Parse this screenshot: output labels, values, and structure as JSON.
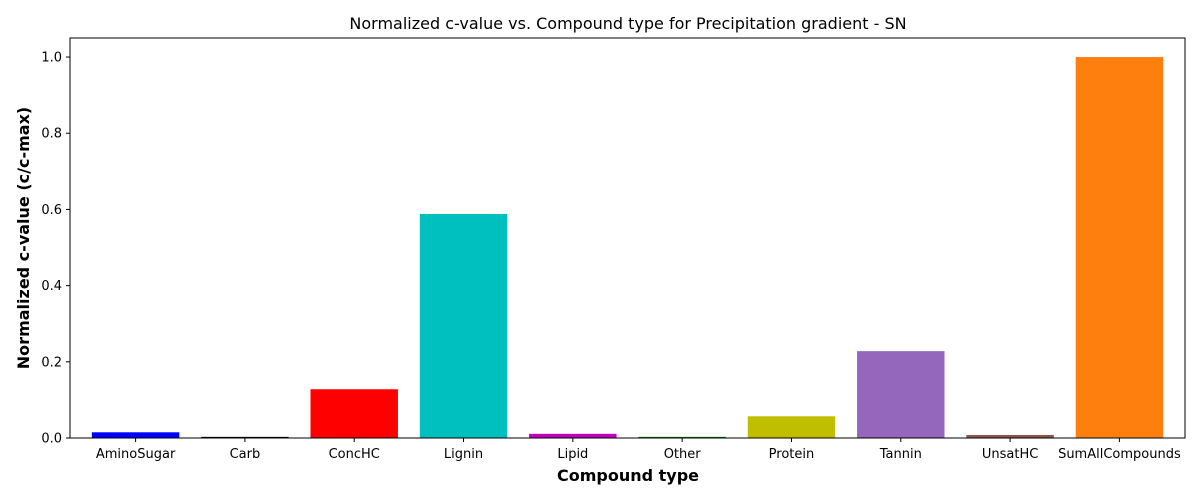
{
  "chart_data": {
    "type": "bar",
    "title": "Normalized c-value vs. Compound type for Precipitation gradient - SN",
    "xlabel": "Compound type",
    "ylabel": "Normalized c-value (c/c-max)",
    "categories": [
      "AminoSugar",
      "Carb",
      "ConcHC",
      "Lignin",
      "Lipid",
      "Other",
      "Protein",
      "Tannin",
      "UnsatHC",
      "SumAllCompounds"
    ],
    "values": [
      0.015,
      0.003,
      0.128,
      0.588,
      0.011,
      0.003,
      0.057,
      0.228,
      0.008,
      1.0
    ],
    "colors": [
      "#0000ff",
      "#000000",
      "#ff0000",
      "#00bfbf",
      "#bf00bf",
      "#008000",
      "#bfbf00",
      "#9467bd",
      "#8c564b",
      "#ff7f0e"
    ],
    "ylim": [
      0,
      1.05
    ],
    "yticks": [
      "0.0",
      "0.2",
      "0.4",
      "0.6",
      "0.8",
      "1.0"
    ],
    "grid": false
  }
}
